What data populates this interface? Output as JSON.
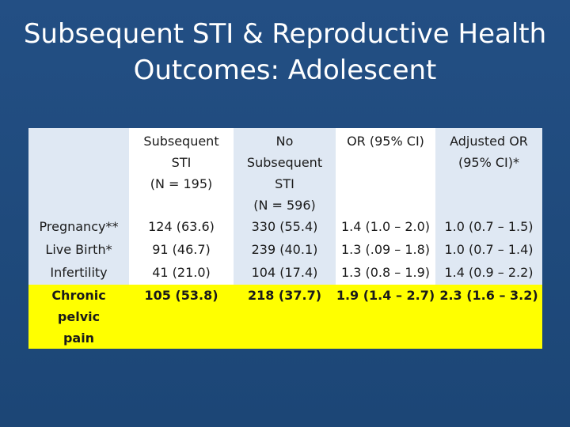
{
  "slide": {
    "title_line1": "Subsequent STI & Reproductive Health",
    "title_line2": "Outcomes: Adolescent"
  },
  "table": {
    "headers": {
      "col1": "",
      "col2": [
        "Subsequent",
        "STI",
        "(N = 195)"
      ],
      "col3": [
        "No",
        "Subsequent",
        "STI",
        "(N = 596)"
      ],
      "col4": "OR (95% CI)",
      "col5": [
        "Adjusted OR",
        "(95% CI)*"
      ]
    },
    "rows": [
      {
        "outcome": "Pregnancy**",
        "sti": "124 (63.6)",
        "no_sti": "330 (55.4)",
        "or": "1.4 (1.0 – 2.0)",
        "aor": "1.0 (0.7 – 1.5)"
      },
      {
        "outcome": "Live Birth*",
        "sti": "91 (46.7)",
        "no_sti": "239 (40.1)",
        "or": "1.3 (.09 – 1.8)",
        "aor": "1.0 (0.7 – 1.4)"
      },
      {
        "outcome": "Infertility",
        "sti": "41 (21.0)",
        "no_sti": "104 (17.4)",
        "or": "1.3 (0.8 – 1.9)",
        "aor": "1.4 (0.9 – 2.2)"
      },
      {
        "outcome": [
          "Chronic pelvic",
          "pain"
        ],
        "sti": "105 (53.8)",
        "no_sti": "218 (37.7)",
        "or": "1.9 (1.4 – 2.7)",
        "aor": "2.3 (1.6 – 3.2)"
      }
    ]
  },
  "colors": {
    "background": "#1f4b7e",
    "column_light": "#dfe8f3",
    "column_white": "#ffffff",
    "highlight": "#ffff00",
    "title_text": "#ffffff"
  }
}
